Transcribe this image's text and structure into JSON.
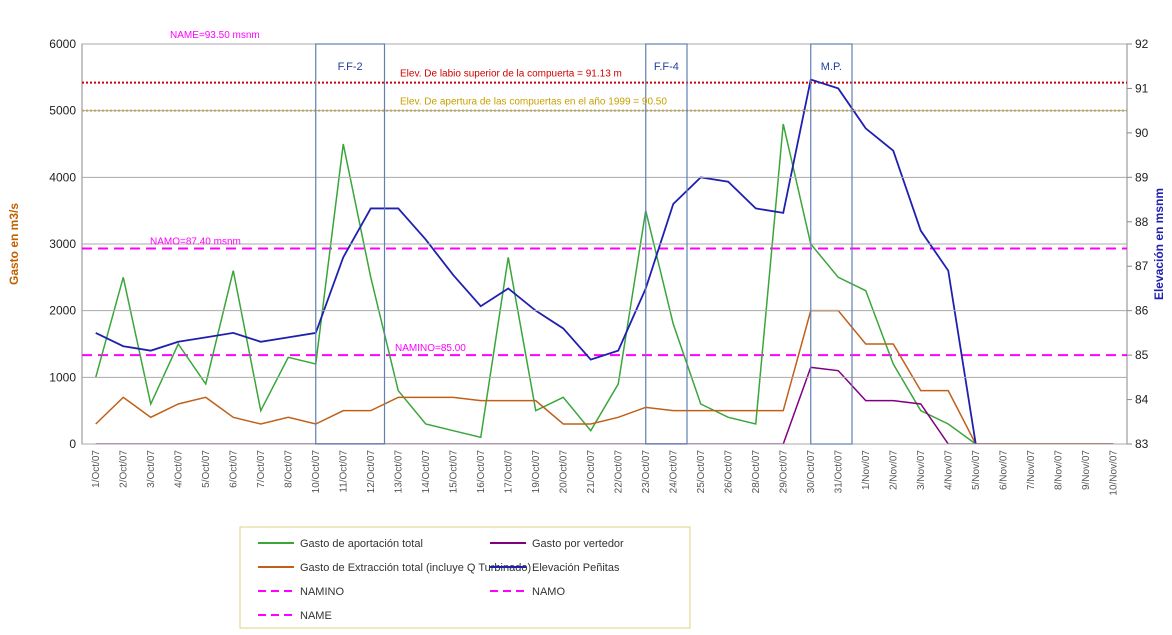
{
  "chart_data": {
    "type": "line",
    "ylabel": "Gasto en m3/s",
    "y2label": "Elevación en msnm",
    "categories": [
      "1/Oct/07",
      "2/Oct/07",
      "3/Oct/07",
      "4/Oct/07",
      "5/Oct/07",
      "6/Oct/07",
      "7/Oct/07",
      "8/Oct/07",
      "10/Oct/07",
      "11/Oct/07",
      "12/Oct/07",
      "13/Oct/07",
      "14/Oct/07",
      "15/Oct/07",
      "16/Oct/07",
      "17/Oct/07",
      "19/Oct/07",
      "20/Oct/07",
      "21/Oct/07",
      "22/Oct/07",
      "23/Oct/07",
      "24/Oct/07",
      "25/Oct/07",
      "26/Oct/07",
      "28/Oct/07",
      "29/Oct/07",
      "30/Oct/07",
      "31/Oct/07",
      "1/Nov/07",
      "2/Nov/07",
      "3/Nov/07",
      "4/Nov/07",
      "5/Nov/07",
      "6/Nov/07",
      "7/Nov/07",
      "8/Nov/07",
      "9/Nov/07",
      "10/Nov/07"
    ],
    "series": [
      {
        "name": "Gasto de aportación total",
        "color": "#3aa63a",
        "axis": "y",
        "values": [
          1000,
          2500,
          600,
          1500,
          900,
          2600,
          500,
          1300,
          1200,
          4500,
          2500,
          800,
          300,
          200,
          100,
          2800,
          500,
          700,
          200,
          900,
          3500,
          1800,
          600,
          400,
          300,
          4800,
          3000,
          2500,
          2300,
          1200,
          500,
          300,
          0,
          0,
          0,
          0,
          0,
          0
        ]
      },
      {
        "name": "Gasto por vertedor",
        "color": "#800080",
        "axis": "y",
        "values": [
          0,
          0,
          0,
          0,
          0,
          0,
          0,
          0,
          0,
          0,
          0,
          0,
          0,
          0,
          0,
          0,
          0,
          0,
          0,
          0,
          0,
          0,
          0,
          0,
          0,
          0,
          1150,
          1100,
          650,
          650,
          600,
          0,
          0,
          0,
          0,
          0,
          0,
          0
        ]
      },
      {
        "name": "Gasto de Extracción total (incluye Q Turbinado)",
        "color": "#c0601a",
        "axis": "y",
        "values": [
          300,
          700,
          400,
          600,
          700,
          400,
          300,
          400,
          300,
          500,
          500,
          700,
          700,
          700,
          650,
          650,
          650,
          300,
          300,
          400,
          550,
          500,
          500,
          500,
          500,
          500,
          2000,
          2000,
          1500,
          1500,
          800,
          800,
          0,
          0,
          0,
          0,
          0,
          0
        ]
      },
      {
        "name": "Elevación Peñitas",
        "color": "#2020b0",
        "axis": "y2",
        "values": [
          85.5,
          85.2,
          85.1,
          85.3,
          85.4,
          85.5,
          85.3,
          85.4,
          85.5,
          87.2,
          88.3,
          88.3,
          87.6,
          86.8,
          86.1,
          86.5,
          86.0,
          85.6,
          84.9,
          85.1,
          86.5,
          88.4,
          89.0,
          88.9,
          88.3,
          88.2,
          91.2,
          91.0,
          90.1,
          89.6,
          87.8,
          86.9,
          83.0,
          null,
          null,
          null,
          null,
          null
        ]
      }
    ],
    "ylim": [
      0,
      6000
    ],
    "yticks": [
      0,
      1000,
      2000,
      3000,
      4000,
      5000,
      6000
    ],
    "y2lim": [
      83,
      92
    ],
    "y2ticks": [
      83,
      84,
      85,
      86,
      87,
      88,
      89,
      90,
      91,
      92
    ],
    "grid": true,
    "reference_lines": [
      {
        "name": "NAMINO",
        "label": "NAMINO=85.00",
        "value": 85.0,
        "color": "#ff00ff",
        "style": "dashed",
        "axis": "y2"
      },
      {
        "name": "NAMO",
        "label": "NAMO=87.40 msnm",
        "value": 87.4,
        "color": "#ff00ff",
        "style": "dashed",
        "axis": "y2"
      },
      {
        "name": "NAME",
        "label": "NAME=93.50 msnm",
        "value": 93.5,
        "color": "#ff00ff",
        "style": "dashed",
        "axis": "y2"
      },
      {
        "label": "Elev. De labio superior de la compuerta = 91.13 m",
        "value": 91.13,
        "color": "#d00000",
        "style": "dotted",
        "axis": "y2"
      },
      {
        "label": "Elev. De apertura de las compuertas en el año 1999 = 90.50",
        "value": 90.5,
        "color": "#c8a000",
        "style": "dotted",
        "axis": "y2"
      }
    ],
    "boxes": [
      {
        "label": "F.F-2",
        "start": 8,
        "end": 10
      },
      {
        "label": "F.F-4",
        "start": 20,
        "end": 21
      },
      {
        "label": "M.P.",
        "start": 26,
        "end": 27
      }
    ],
    "legend": "bottom"
  }
}
